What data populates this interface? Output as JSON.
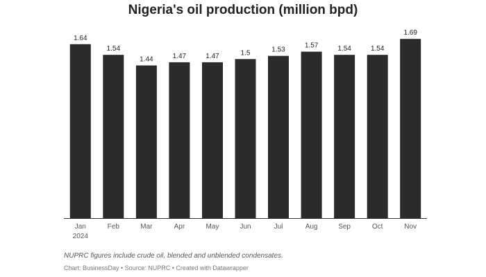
{
  "chart_data": {
    "type": "bar",
    "title": "Nigeria's oil production (million bpd)",
    "categories": [
      "Jan",
      "Feb",
      "Mar",
      "Apr",
      "May",
      "Jun",
      "Jul",
      "Aug",
      "Sep",
      "Oct",
      "Nov"
    ],
    "year_label": "2024",
    "values": [
      1.64,
      1.54,
      1.44,
      1.47,
      1.47,
      1.5,
      1.53,
      1.57,
      1.54,
      1.54,
      1.69
    ],
    "value_labels": [
      "1.64",
      "1.54",
      "1.44",
      "1.47",
      "1.47",
      "1.5",
      "1.53",
      "1.57",
      "1.54",
      "1.54",
      "1.69"
    ],
    "xlabel": "",
    "ylabel": "",
    "ylim": [
      0,
      1.75
    ],
    "grid": false,
    "bar_color": "#2b2b2b",
    "axis_color": "#333333"
  },
  "note": "NUPRC figures include crude oil, blended and unblended condensates.",
  "source": "Chart: BusinessDay • Source: NUPRC • Created with Datawrapper"
}
